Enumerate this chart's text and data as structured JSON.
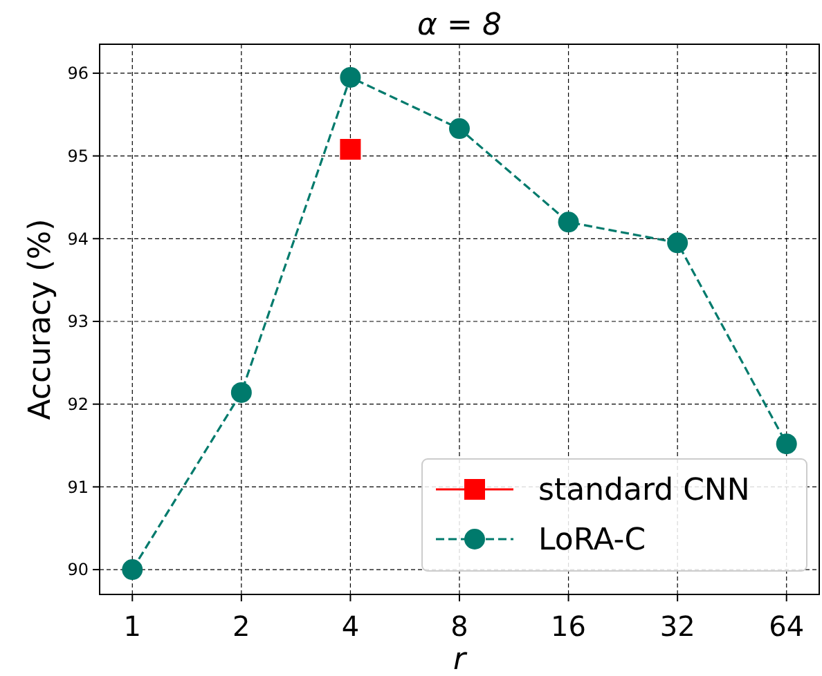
{
  "chart_data": {
    "type": "line",
    "title": "α = 8",
    "xlabel": "r",
    "ylabel": "Accuracy (%)",
    "categories": [
      "1",
      "2",
      "4",
      "8",
      "16",
      "32",
      "64"
    ],
    "series": [
      {
        "name": "standard CNN",
        "color": "#ff0000",
        "marker": "square",
        "line_style": "solid",
        "values": [
          null,
          null,
          95.08,
          null,
          null,
          null,
          null
        ]
      },
      {
        "name": "LoRA-C",
        "color": "#007a6c",
        "marker": "circle",
        "line_style": "dashed",
        "values": [
          90.0,
          92.14,
          95.95,
          95.33,
          94.2,
          93.95,
          91.52
        ]
      }
    ],
    "ylim": [
      89.7,
      96.35
    ],
    "yticks": [
      90,
      91,
      92,
      93,
      94,
      95,
      96
    ],
    "grid": true,
    "legend": "bottom right"
  }
}
